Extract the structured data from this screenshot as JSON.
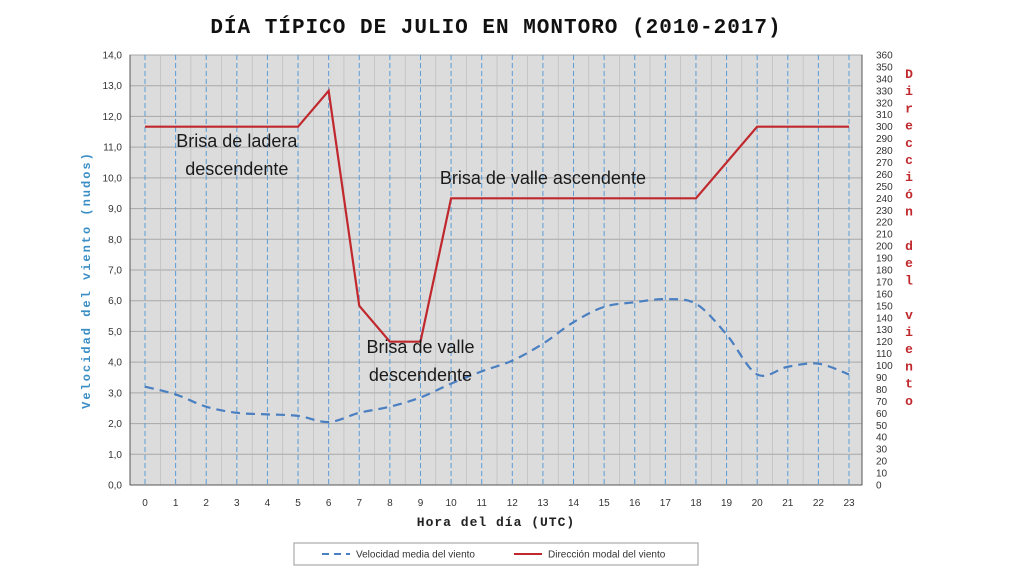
{
  "chart_data": {
    "type": "line",
    "title": "DÍA TÍPICO DE JULIO EN MONTORO (2010-2017)",
    "xlabel": "Hora del día (UTC)",
    "ylabel_left": "Velocidad del viento (nudos)",
    "ylabel_right": "Dirección del viento",
    "x": [
      0,
      1,
      2,
      3,
      4,
      5,
      6,
      7,
      8,
      9,
      10,
      11,
      12,
      13,
      14,
      15,
      16,
      17,
      18,
      19,
      20,
      21,
      22,
      23
    ],
    "xlim": [
      0,
      23
    ],
    "ylim_left": [
      0,
      14
    ],
    "ylim_right": [
      0,
      360
    ],
    "y_left_ticks": [
      "0,0",
      "1,0",
      "2,0",
      "3,0",
      "4,0",
      "5,0",
      "6,0",
      "7,0",
      "8,0",
      "9,0",
      "10,0",
      "11,0",
      "12,0",
      "13,0",
      "14,0"
    ],
    "y_right_tick_step": 10,
    "grid": true,
    "legend_position": "bottom",
    "series": [
      {
        "name": "Velocidad media del viento",
        "axis": "left",
        "style": "dashed",
        "color": "#4a7fc1",
        "values": [
          3.2,
          2.95,
          2.55,
          2.35,
          2.3,
          2.25,
          2.05,
          2.35,
          2.55,
          2.85,
          3.3,
          3.7,
          4.05,
          4.6,
          5.3,
          5.8,
          5.95,
          6.05,
          5.9,
          4.9,
          3.6,
          3.85,
          3.95,
          3.6
        ]
      },
      {
        "name": "Dirección modal del viento",
        "axis": "right",
        "style": "solid",
        "color": "#c0282d",
        "x": [
          0,
          5,
          6,
          7,
          8,
          9,
          10,
          18,
          20,
          23
        ],
        "values": [
          300,
          300,
          330,
          150,
          120,
          120,
          240,
          240,
          300,
          300
        ]
      }
    ],
    "annotations": [
      {
        "lines": [
          "Brisa de ladera",
          "descendente"
        ],
        "x": 3,
        "y": 11.0
      },
      {
        "lines": [
          "Brisa de valle ascendente"
        ],
        "x": 13,
        "y": 9.8
      },
      {
        "lines": [
          "Brisa de valle",
          "descendente"
        ],
        "x": 9,
        "y": 4.3
      }
    ]
  },
  "colors": {
    "plot_background": "#dcdcdc",
    "grid_vertical": "#5b9bd5",
    "grid_horizontal": "#a8a8a8",
    "left_axis_label": "#3a8ec6",
    "right_axis_label": "#c0282d"
  }
}
